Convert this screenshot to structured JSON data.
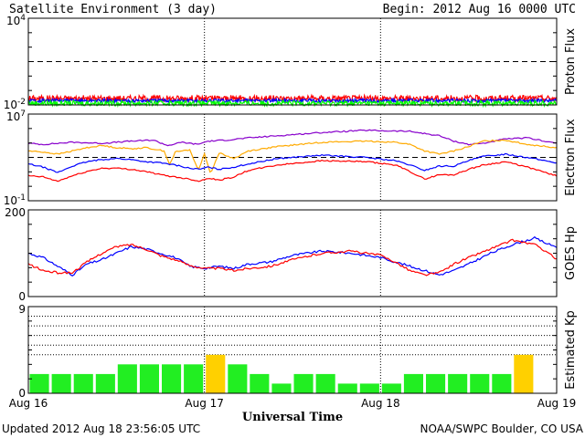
{
  "chart_data": {
    "title": "Satellite Environment (3 day)",
    "begin": "Begin:  2012 Aug 16 0000 UTC",
    "xlabel": "Universal Time",
    "x_ticks": [
      "Aug 16",
      "Aug 17",
      "Aug 18",
      "Aug 19"
    ],
    "x_range_hours": [
      0,
      72
    ],
    "footer_left": "Updated 2012 Aug 18 23:56:05 UTC",
    "footer_right": "NOAA/SWPC Boulder, CO USA",
    "colors": {
      "red": "#ff0000",
      "blue": "#0000ff",
      "green": "#00ff00",
      "purple": "#8800cc",
      "orange": "#ffaa00",
      "kp_green": "#22ee22",
      "kp_yellow": "#ffd000"
    },
    "panels": [
      {
        "name": "proton-flux",
        "type": "line",
        "scale": "log",
        "ylabel": "Proton Flux",
        "ylim_exp": [
          -2,
          4
        ],
        "tick_labels": [
          {
            "value": 4,
            "base": "10",
            "exp": "4"
          },
          {
            "value": -2,
            "base": "10",
            "exp": "-2"
          }
        ],
        "threshold": 1,
        "series": [
          {
            "color": "red",
            "level": -1.55,
            "amp": 0.22
          },
          {
            "color": "blue",
            "level": -1.7,
            "amp": 0.12
          },
          {
            "color": "green",
            "level": -1.88,
            "amp": 0.18
          }
        ]
      },
      {
        "name": "electron-flux",
        "type": "line",
        "scale": "log",
        "ylabel": "Electron Flux",
        "ylim_exp": [
          -1,
          7
        ],
        "tick_labels": [
          {
            "value": 7,
            "base": "10",
            "exp": "7"
          },
          {
            "value": -1,
            "base": "10",
            "exp": "-1"
          }
        ],
        "threshold": 3,
        "series": [
          {
            "color": "purple",
            "points": [
              [
                0,
                4.3
              ],
              [
                2,
                4.2
              ],
              [
                6,
                4.4
              ],
              [
                10,
                4.3
              ],
              [
                14,
                4.5
              ],
              [
                17,
                4.6
              ],
              [
                19,
                4.1
              ],
              [
                21,
                4.4
              ],
              [
                23,
                4.2
              ],
              [
                24.5,
                4.5
              ],
              [
                27,
                4.6
              ],
              [
                30,
                4.8
              ],
              [
                34,
                5.0
              ],
              [
                40,
                5.3
              ],
              [
                46,
                5.5
              ],
              [
                52,
                5.4
              ],
              [
                56,
                5.0
              ],
              [
                58,
                4.5
              ],
              [
                60,
                4.2
              ],
              [
                62,
                4.3
              ],
              [
                65,
                4.7
              ],
              [
                68,
                4.8
              ],
              [
                72,
                4.3
              ]
            ]
          },
          {
            "color": "orange",
            "points": [
              [
                0,
                3.6
              ],
              [
                2,
                3.5
              ],
              [
                4,
                3.3
              ],
              [
                6,
                3.6
              ],
              [
                8,
                3.9
              ],
              [
                10,
                4.1
              ],
              [
                12,
                3.9
              ],
              [
                14,
                3.8
              ],
              [
                16,
                3.9
              ],
              [
                18.5,
                3.6
              ],
              [
                19.3,
                2.3
              ],
              [
                20,
                3.5
              ],
              [
                22,
                3.7
              ],
              [
                23.2,
                1.8
              ],
              [
                24,
                3.4
              ],
              [
                24.8,
                1.5
              ],
              [
                26,
                3.4
              ],
              [
                28,
                2.9
              ],
              [
                30,
                3.6
              ],
              [
                34,
                4.0
              ],
              [
                40,
                4.4
              ],
              [
                46,
                4.5
              ],
              [
                50,
                4.4
              ],
              [
                52,
                4.2
              ],
              [
                54,
                3.6
              ],
              [
                56,
                3.3
              ],
              [
                58,
                3.6
              ],
              [
                60,
                4.0
              ],
              [
                62,
                4.5
              ],
              [
                65,
                4.6
              ],
              [
                68,
                4.2
              ],
              [
                72,
                3.9
              ]
            ]
          },
          {
            "color": "blue",
            "points": [
              [
                0,
                2.4
              ],
              [
                2,
                2.1
              ],
              [
                4,
                1.6
              ],
              [
                6,
                2.2
              ],
              [
                8,
                2.6
              ],
              [
                10,
                2.8
              ],
              [
                12,
                2.9
              ],
              [
                14,
                2.8
              ],
              [
                16,
                2.6
              ],
              [
                18,
                2.5
              ],
              [
                20,
                2.3
              ],
              [
                22,
                2.0
              ],
              [
                23.3,
                1.9
              ],
              [
                24.5,
                2.1
              ],
              [
                26,
                1.9
              ],
              [
                28,
                2.1
              ],
              [
                30,
                2.4
              ],
              [
                34,
                2.9
              ],
              [
                40,
                3.2
              ],
              [
                46,
                3.0
              ],
              [
                50,
                2.7
              ],
              [
                52,
                2.3
              ],
              [
                54,
                1.8
              ],
              [
                56,
                2.2
              ],
              [
                58,
                2.2
              ],
              [
                60,
                2.7
              ],
              [
                62,
                3.1
              ],
              [
                65,
                3.3
              ],
              [
                68,
                3.0
              ],
              [
                72,
                2.5
              ]
            ]
          },
          {
            "color": "red",
            "points": [
              [
                0,
                1.3
              ],
              [
                2,
                1.2
              ],
              [
                4,
                0.8
              ],
              [
                6,
                1.3
              ],
              [
                8,
                1.7
              ],
              [
                10,
                2.0
              ],
              [
                12,
                2.0
              ],
              [
                14,
                1.9
              ],
              [
                16,
                1.7
              ],
              [
                18,
                1.4
              ],
              [
                20,
                1.2
              ],
              [
                22,
                1.0
              ],
              [
                23.3,
                0.8
              ],
              [
                24.5,
                1.1
              ],
              [
                26,
                0.9
              ],
              [
                28,
                1.2
              ],
              [
                30,
                1.8
              ],
              [
                34,
                2.3
              ],
              [
                40,
                2.7
              ],
              [
                46,
                2.6
              ],
              [
                50,
                2.3
              ],
              [
                52,
                1.7
              ],
              [
                54,
                1.0
              ],
              [
                56,
                1.4
              ],
              [
                58,
                1.4
              ],
              [
                60,
                1.9
              ],
              [
                62,
                2.3
              ],
              [
                65,
                2.6
              ],
              [
                68,
                2.1
              ],
              [
                72,
                1.3
              ]
            ]
          }
        ]
      },
      {
        "name": "goes-hp",
        "type": "line",
        "scale": "linear",
        "ylabel": "GOES Hp",
        "ylim": [
          0,
          200
        ],
        "tick_labels": [
          {
            "value": 200,
            "text": "200"
          },
          {
            "value": 0,
            "text": "0"
          }
        ],
        "series": [
          {
            "color": "blue",
            "points": [
              [
                0,
                100
              ],
              [
                2,
                90
              ],
              [
                4,
                70
              ],
              [
                6,
                50
              ],
              [
                8,
                75
              ],
              [
                10,
                85
              ],
              [
                12,
                100
              ],
              [
                14,
                115
              ],
              [
                16,
                110
              ],
              [
                18,
                100
              ],
              [
                20,
                90
              ],
              [
                22,
                70
              ],
              [
                24,
                65
              ],
              [
                26,
                70
              ],
              [
                28,
                65
              ],
              [
                30,
                75
              ],
              [
                33,
                80
              ],
              [
                36,
                95
              ],
              [
                40,
                105
              ],
              [
                44,
                100
              ],
              [
                48,
                90
              ],
              [
                50,
                80
              ],
              [
                52,
                70
              ],
              [
                54,
                60
              ],
              [
                56,
                50
              ],
              [
                58,
                60
              ],
              [
                60,
                75
              ],
              [
                63,
                100
              ],
              [
                66,
                120
              ],
              [
                69,
                135
              ],
              [
                71,
                120
              ],
              [
                72,
                115
              ]
            ]
          },
          {
            "color": "red",
            "points": [
              [
                0,
                75
              ],
              [
                2,
                60
              ],
              [
                4,
                55
              ],
              [
                6,
                55
              ],
              [
                8,
                80
              ],
              [
                10,
                100
              ],
              [
                12,
                115
              ],
              [
                14,
                120
              ],
              [
                16,
                110
              ],
              [
                18,
                95
              ],
              [
                20,
                85
              ],
              [
                22,
                72
              ],
              [
                24,
                65
              ],
              [
                26,
                65
              ],
              [
                28,
                60
              ],
              [
                30,
                65
              ],
              [
                33,
                70
              ],
              [
                36,
                85
              ],
              [
                40,
                100
              ],
              [
                44,
                105
              ],
              [
                48,
                95
              ],
              [
                50,
                80
              ],
              [
                52,
                60
              ],
              [
                54,
                50
              ],
              [
                56,
                55
              ],
              [
                58,
                75
              ],
              [
                60,
                90
              ],
              [
                63,
                110
              ],
              [
                66,
                130
              ],
              [
                69,
                120
              ],
              [
                71,
                100
              ],
              [
                72,
                85
              ]
            ]
          }
        ]
      },
      {
        "name": "estimated-kp",
        "type": "bar",
        "ylabel": "Estimated Kp",
        "ylim": [
          0,
          9
        ],
        "tick_labels": [
          {
            "value": 9,
            "text": "9"
          },
          {
            "value": 0,
            "text": "0"
          }
        ],
        "dotted_levels": [
          4,
          5,
          6,
          7,
          8
        ],
        "bar_hours": 3,
        "values": [
          2,
          2,
          2,
          2,
          3,
          3,
          3,
          3,
          4,
          3,
          2,
          1,
          2,
          2,
          1,
          1,
          1,
          2,
          2,
          2,
          2,
          2,
          4,
          0
        ],
        "yellow_threshold": 4
      }
    ]
  }
}
